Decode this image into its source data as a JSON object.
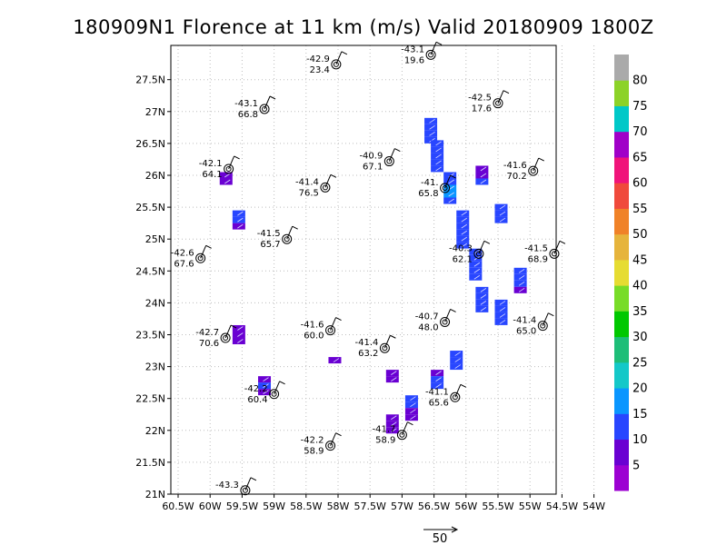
{
  "chart_data": {
    "type": "scatter",
    "title": "180909N1 Florence at 11 km (m/s) Valid 20180909  1800Z",
    "xlabel": "",
    "ylabel": "",
    "xlim": [
      -60.5,
      -54.0
    ],
    "ylim": [
      21.0,
      28.0
    ],
    "grid": true,
    "x_ticks": [
      "60.5W",
      "60W",
      "59.5W",
      "59W",
      "58.5W",
      "58W",
      "57.5W",
      "57W",
      "56.5W",
      "56W",
      "55.5W",
      "55W",
      "54.5W",
      "54W"
    ],
    "y_ticks": [
      "21N",
      "21.5N",
      "22N",
      "22.5N",
      "23N",
      "23.5N",
      "24N",
      "24.5N",
      "25N",
      "25.5N",
      "26N",
      "26.5N",
      "27N",
      "27.5N"
    ],
    "colorbar": {
      "labels": [
        "5",
        "10",
        "15",
        "20",
        "25",
        "30",
        "35",
        "40",
        "45",
        "50",
        "55",
        "60",
        "65",
        "70",
        "75",
        "80"
      ],
      "colors": [
        "#9c00d2",
        "#6a00d2",
        "#2846ff",
        "#0a96ff",
        "#14c8c8",
        "#1ebe78",
        "#00c800",
        "#78dc28",
        "#e6dc32",
        "#e6b43c",
        "#f08228",
        "#f04a3c",
        "#f0147a",
        "#a000c8",
        "#00c8c8",
        "#8cd228",
        "#aaaaaa"
      ]
    },
    "reference_vector": {
      "label": "50"
    },
    "stations": [
      {
        "lon": -58.03,
        "lat": 27.74,
        "temp": "-42.9",
        "value": "23.4"
      },
      {
        "lon": -56.55,
        "lat": 27.89,
        "temp": "-43.1",
        "value": "19.6"
      },
      {
        "lon": -59.15,
        "lat": 27.04,
        "temp": "-43.1",
        "value": "66.8"
      },
      {
        "lon": -55.5,
        "lat": 27.13,
        "temp": "-42.5",
        "value": "17.6"
      },
      {
        "lon": -59.71,
        "lat": 26.1,
        "temp": "-42.1",
        "value": "64.1"
      },
      {
        "lon": -57.2,
        "lat": 26.22,
        "temp": "-40.9",
        "value": "67.1"
      },
      {
        "lon": -54.95,
        "lat": 26.07,
        "temp": "-41.6",
        "value": "70.2"
      },
      {
        "lon": -58.2,
        "lat": 25.81,
        "temp": "-41.4",
        "value": "76.5"
      },
      {
        "lon": -56.33,
        "lat": 25.8,
        "temp": "-41.",
        "value": "65.8"
      },
      {
        "lon": -58.8,
        "lat": 25.0,
        "temp": "-41.5",
        "value": "65.7"
      },
      {
        "lon": -60.15,
        "lat": 24.7,
        "temp": "-42.6",
        "value": "67.6"
      },
      {
        "lon": -55.8,
        "lat": 24.77,
        "temp": "-40.3",
        "value": "62.1"
      },
      {
        "lon": -54.62,
        "lat": 24.77,
        "temp": "-41.5",
        "value": "68.9"
      },
      {
        "lon": -56.33,
        "lat": 23.7,
        "temp": "-40.7",
        "value": "48.0"
      },
      {
        "lon": -54.8,
        "lat": 23.64,
        "temp": "-41.4",
        "value": "65.0"
      },
      {
        "lon": -58.12,
        "lat": 23.57,
        "temp": "-41.6",
        "value": "60.0"
      },
      {
        "lon": -59.76,
        "lat": 23.45,
        "temp": "-42.7",
        "value": "70.6"
      },
      {
        "lon": -57.27,
        "lat": 23.29,
        "temp": "-41.4",
        "value": "63.2"
      },
      {
        "lon": -59.0,
        "lat": 22.57,
        "temp": "-42.2",
        "value": "60.4"
      },
      {
        "lon": -56.17,
        "lat": 22.52,
        "temp": "-41.1",
        "value": "65.6"
      },
      {
        "lon": -57.0,
        "lat": 21.93,
        "temp": "-41.7",
        "value": "58.9"
      },
      {
        "lon": -58.12,
        "lat": 21.76,
        "temp": "-42.2",
        "value": "58.9"
      },
      {
        "lon": -59.45,
        "lat": 21.06,
        "temp": "-43.3",
        "value": ""
      }
    ],
    "wind_cells": [
      {
        "lon": -56.6,
        "lat": 26.85,
        "bins": [
          "15",
          "15",
          "15",
          "15"
        ]
      },
      {
        "lon": -56.5,
        "lat": 26.5,
        "bins": [
          "15",
          "15",
          "15",
          "15",
          "15"
        ]
      },
      {
        "lon": -56.3,
        "lat": 26.0,
        "bins": [
          "15",
          "15",
          "20",
          "20",
          "15"
        ]
      },
      {
        "lon": -56.1,
        "lat": 25.4,
        "bins": [
          "15",
          "15",
          "15",
          "15",
          "15",
          "15"
        ]
      },
      {
        "lon": -55.9,
        "lat": 24.8,
        "bins": [
          "15",
          "15",
          "15",
          "15",
          "15"
        ]
      },
      {
        "lon": -55.8,
        "lat": 24.2,
        "bins": [
          "15",
          "15",
          "15",
          "15"
        ]
      },
      {
        "lon": -55.5,
        "lat": 24.0,
        "bins": [
          "15",
          "15",
          "15",
          "15"
        ]
      },
      {
        "lon": -55.2,
        "lat": 24.5,
        "bins": [
          "15",
          "15",
          "15",
          "10"
        ]
      },
      {
        "lon": -55.5,
        "lat": 25.5,
        "bins": [
          "15",
          "15",
          "15"
        ]
      },
      {
        "lon": -55.8,
        "lat": 26.1,
        "bins": [
          "10",
          "10",
          "15"
        ]
      },
      {
        "lon": -56.2,
        "lat": 23.2,
        "bins": [
          "15",
          "15",
          "15"
        ]
      },
      {
        "lon": -56.5,
        "lat": 22.9,
        "bins": [
          "10",
          "15",
          "15"
        ]
      },
      {
        "lon": -56.9,
        "lat": 22.5,
        "bins": [
          "15",
          "15",
          "10",
          "10"
        ]
      },
      {
        "lon": -57.2,
        "lat": 22.2,
        "bins": [
          "10",
          "10",
          "10"
        ]
      },
      {
        "lon": -59.6,
        "lat": 25.4,
        "bins": [
          "15",
          "15",
          "10"
        ]
      },
      {
        "lon": -59.6,
        "lat": 23.6,
        "bins": [
          "10",
          "10",
          "10"
        ]
      },
      {
        "lon": -59.2,
        "lat": 22.8,
        "bins": [
          "10",
          "15",
          "10"
        ]
      },
      {
        "lon": -59.8,
        "lat": 26.0,
        "bins": [
          "10",
          "10"
        ]
      },
      {
        "lon": -57.2,
        "lat": 22.9,
        "bins": [
          "10",
          "10"
        ]
      },
      {
        "lon": -58.1,
        "lat": 23.1,
        "bins": [
          "10"
        ]
      }
    ]
  }
}
